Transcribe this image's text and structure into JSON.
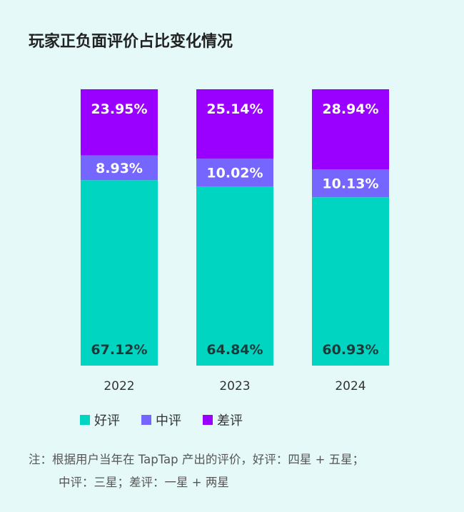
{
  "title": "玩家正负面评价占比变化情况",
  "chart_data": {
    "type": "bar",
    "stacked": true,
    "categories": [
      "2022",
      "2023",
      "2024"
    ],
    "series": [
      {
        "name": "好评",
        "color": "#00d5c2",
        "values": [
          67.12,
          64.84,
          60.93
        ]
      },
      {
        "name": "中评",
        "color": "#7466ff",
        "values": [
          8.93,
          10.02,
          10.13
        ]
      },
      {
        "name": "差评",
        "color": "#9900ff",
        "values": [
          23.95,
          25.14,
          28.94
        ]
      }
    ],
    "ylim": [
      0,
      100
    ],
    "grid": false,
    "legend": "bottom"
  },
  "note": {
    "line1": "注：根据用户当年在 TapTap 产出的评价，好评：四星 + 五星；",
    "line2": "中评：三星；差评：一星 + 两星"
  }
}
